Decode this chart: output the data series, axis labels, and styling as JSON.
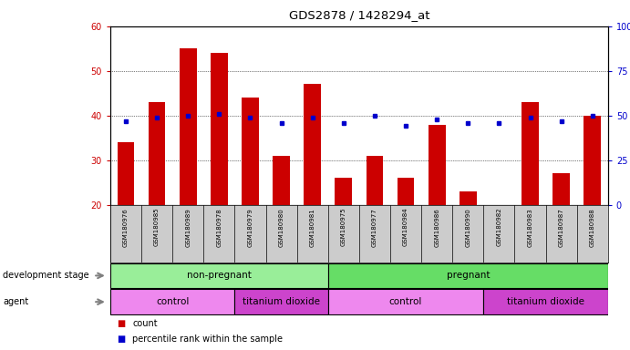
{
  "title": "GDS2878 / 1428294_at",
  "samples": [
    "GSM180976",
    "GSM180985",
    "GSM180989",
    "GSM180978",
    "GSM180979",
    "GSM180980",
    "GSM180981",
    "GSM180975",
    "GSM180977",
    "GSM180984",
    "GSM180986",
    "GSM180990",
    "GSM180982",
    "GSM180983",
    "GSM180987",
    "GSM180988"
  ],
  "counts": [
    34,
    43,
    55,
    54,
    44,
    31,
    47,
    26,
    31,
    26,
    38,
    23,
    20,
    43,
    27,
    40
  ],
  "percentiles": [
    47,
    49,
    50,
    51,
    49,
    46,
    49,
    46,
    50,
    44,
    48,
    46,
    46,
    49,
    47,
    50
  ],
  "bar_color": "#cc0000",
  "dot_color": "#0000cc",
  "ylim_left": [
    20,
    60
  ],
  "ylim_right": [
    0,
    100
  ],
  "yticks_left": [
    20,
    30,
    40,
    50,
    60
  ],
  "yticks_right": [
    0,
    25,
    50,
    75,
    100
  ],
  "development_stage_groups": [
    {
      "label": "non-pregnant",
      "start": 0,
      "end": 7,
      "color": "#99ee99"
    },
    {
      "label": "pregnant",
      "start": 7,
      "end": 16,
      "color": "#66dd66"
    }
  ],
  "agent_groups": [
    {
      "label": "control",
      "start": 0,
      "end": 4,
      "color": "#ee88ee"
    },
    {
      "label": "titanium dioxide",
      "start": 4,
      "end": 7,
      "color": "#cc44cc"
    },
    {
      "label": "control",
      "start": 7,
      "end": 12,
      "color": "#ee88ee"
    },
    {
      "label": "titanium dioxide",
      "start": 12,
      "end": 16,
      "color": "#cc44cc"
    }
  ],
  "bar_color_legend": "#cc0000",
  "dot_color_legend": "#0000cc",
  "bar_width": 0.55,
  "label_bg_color": "#cccccc",
  "axis_color_left": "#cc0000",
  "axis_color_right": "#0000cc"
}
